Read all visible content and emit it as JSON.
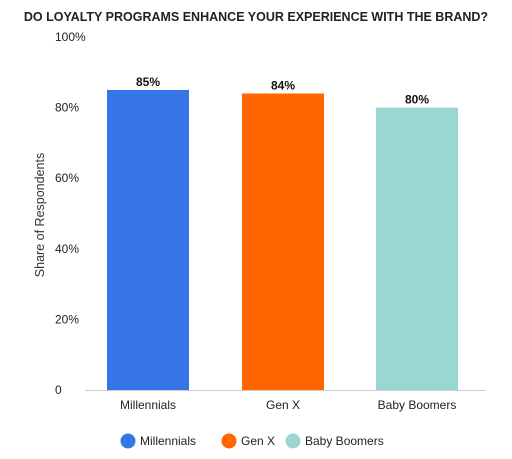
{
  "chart_data": {
    "type": "bar",
    "title": "DO LOYALTY PROGRAMS ENHANCE YOUR EXPERIENCE WITH THE BRAND?",
    "xlabel": "",
    "ylabel": "Share of Respondents",
    "categories": [
      "Millennials",
      "Gen X",
      "Baby Boomers"
    ],
    "values": [
      85,
      84,
      80
    ],
    "value_labels": [
      "85%",
      "84%",
      "80%"
    ],
    "colors": [
      "#3575E8",
      "#FF6600",
      "#9AD7D2"
    ],
    "ylim": [
      0,
      100
    ],
    "yticks": [
      0,
      20,
      40,
      60,
      80,
      100
    ],
    "ytick_labels": [
      "0",
      "20%",
      "40%",
      "60%",
      "80%",
      "100%"
    ],
    "grid": false,
    "legend": {
      "position": "bottom",
      "entries": [
        "Millennials",
        "Gen X",
        "Baby Boomers"
      ]
    }
  }
}
